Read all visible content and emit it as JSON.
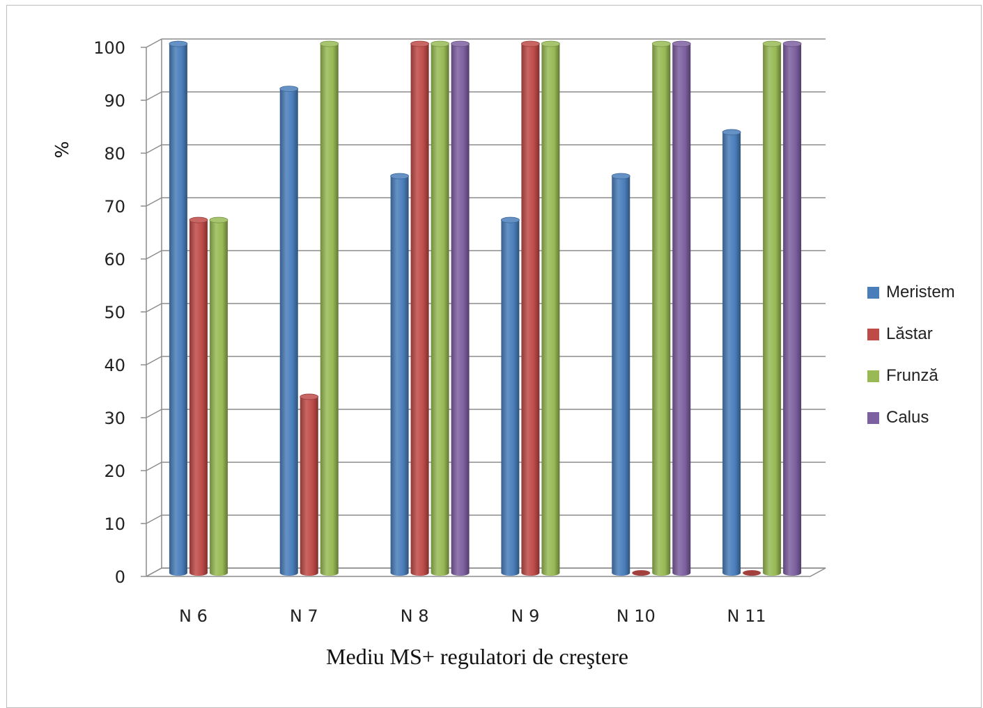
{
  "chart_data": {
    "type": "bar",
    "title": "",
    "xlabel": "Mediu MS+ regulatori de creştere",
    "ylabel": "%",
    "ylim": [
      0,
      100
    ],
    "yticks": [
      "0",
      "10",
      "20",
      "30",
      "40",
      "50",
      "60",
      "70",
      "80",
      "90",
      "100"
    ],
    "grid": true,
    "legend_position": "right",
    "categories": [
      "N 6",
      "N 7",
      "N 8",
      "N 9",
      "N 10",
      "N 11"
    ],
    "series": [
      {
        "name": "Meristem",
        "color": "#4a7ebb",
        "values": [
          100,
          91.5,
          75,
          66.7,
          75,
          83.3
        ]
      },
      {
        "name": "Lăstar",
        "color": "#be4b48",
        "values": [
          66.7,
          33.3,
          100,
          100,
          0,
          0
        ]
      },
      {
        "name": "Frunză",
        "color": "#98b954",
        "values": [
          66.7,
          100,
          100,
          100,
          100,
          100
        ]
      },
      {
        "name": "Calus",
        "color": "#7d60a0",
        "values": [
          null,
          null,
          100,
          null,
          100,
          100
        ]
      }
    ]
  }
}
